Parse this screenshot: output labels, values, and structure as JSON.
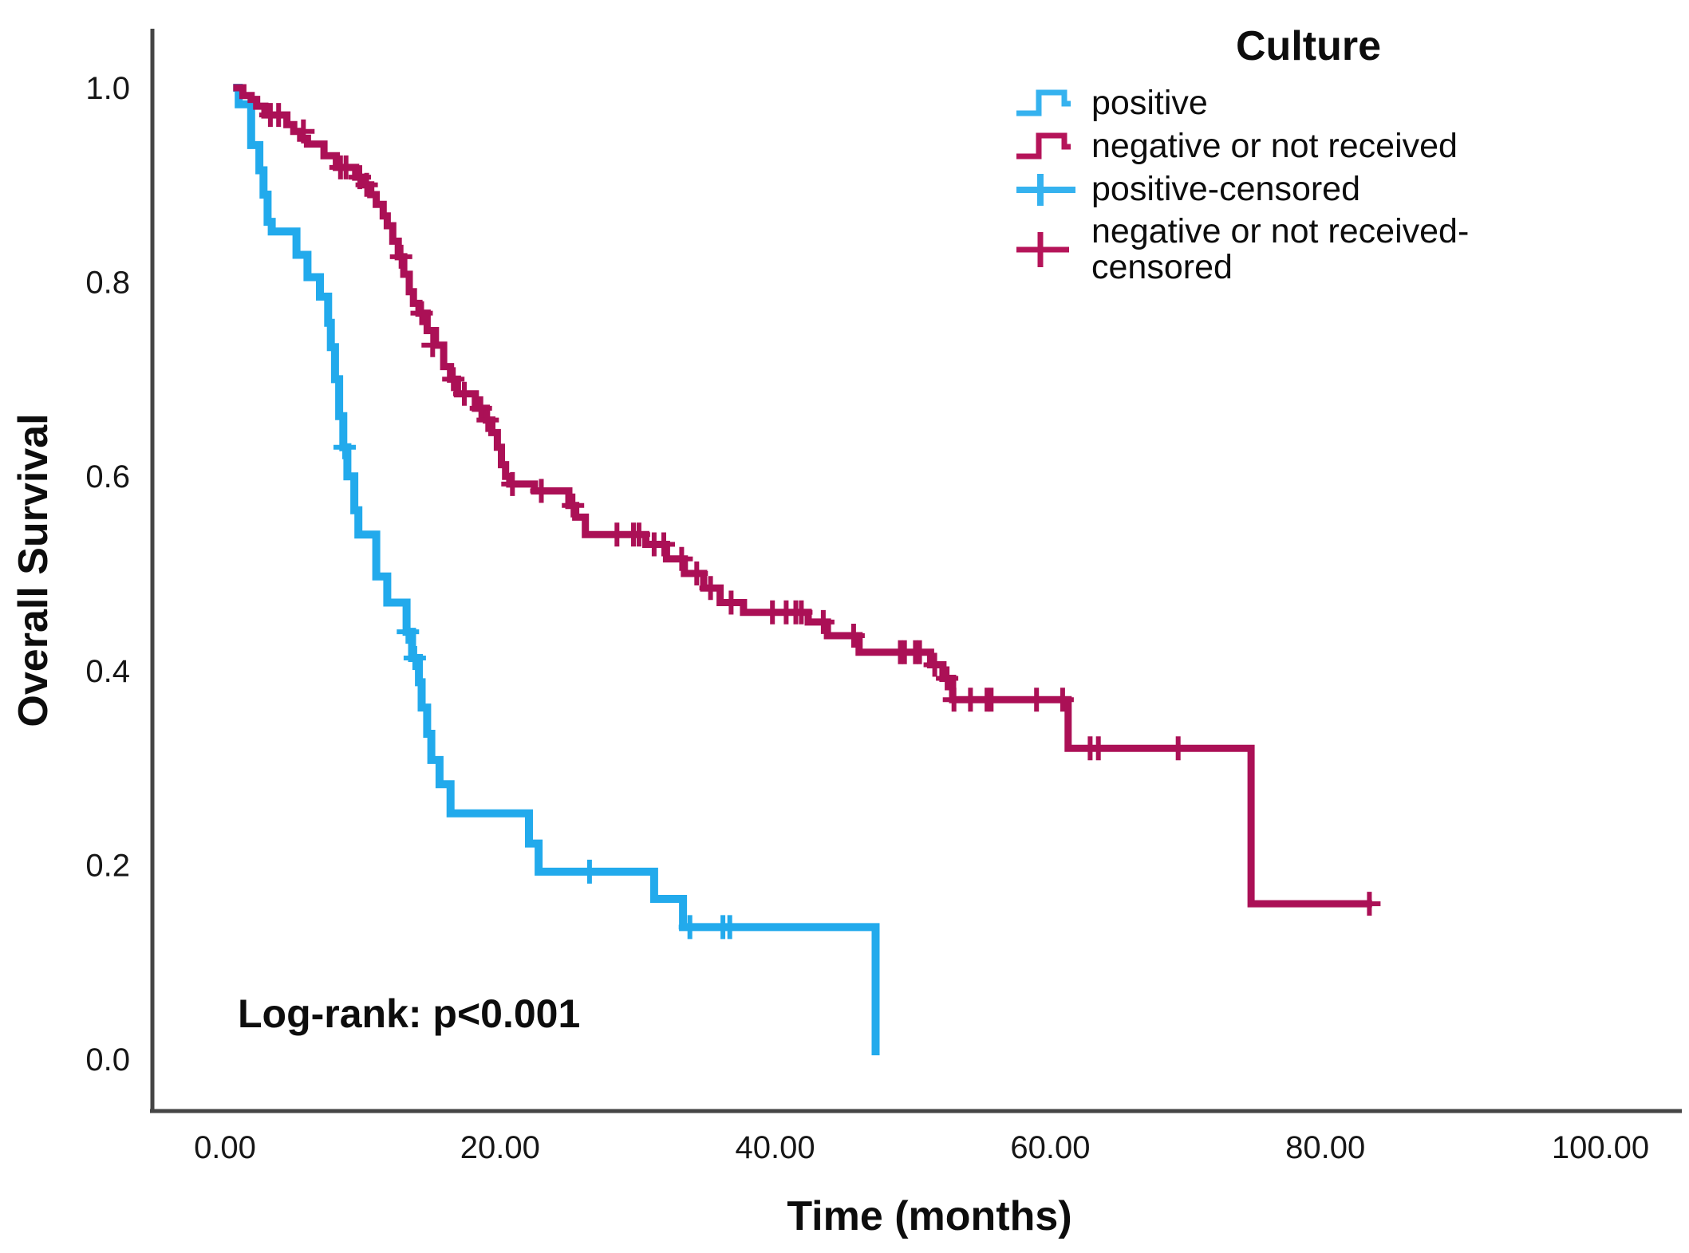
{
  "annotation": {
    "logrank": "Log-rank: p<0.001"
  },
  "legend": {
    "title": "Culture",
    "entries": [
      {
        "label": "positive",
        "symbol": "step-line",
        "color": "#35B2EF"
      },
      {
        "label": "negative or not received",
        "symbol": "step-line",
        "color": "#B51459"
      },
      {
        "label": "positive-censored",
        "symbol": "plus",
        "color": "#35B2EF"
      },
      {
        "label": "negative or not received-censored",
        "symbol": "plus",
        "color": "#B51459"
      }
    ]
  },
  "chart_data": {
    "type": "line",
    "subtype": "kaplan-meier-survival",
    "title": "",
    "xlabel": "Time (months)",
    "ylabel": "Overall Survival",
    "xlim": [
      0,
      100
    ],
    "ylim": [
      0.0,
      1.0
    ],
    "grid": false,
    "legend_position": "top-right",
    "x_ticks": {
      "values": [
        0,
        20,
        40,
        60,
        80,
        100
      ],
      "labels": [
        "0.00",
        "20.00",
        "40.00",
        "60.00",
        "80.00",
        "100.00"
      ]
    },
    "y_ticks": {
      "values": [
        1.0,
        0.8,
        0.6,
        0.4,
        0.2,
        0.0
      ],
      "labels": [
        "1.0",
        "0.8",
        "0.6",
        "0.4",
        "0.2",
        "0.0"
      ]
    },
    "axis_color": "#454545",
    "series": [
      {
        "name": "positive",
        "color": "#22AAEC",
        "line_width": 10,
        "steps": [
          [
            0.6,
            1.0
          ],
          [
            1.0,
            0.983
          ],
          [
            1.9,
            0.941
          ],
          [
            2.5,
            0.915
          ],
          [
            2.8,
            0.89
          ],
          [
            3.1,
            0.862
          ],
          [
            3.4,
            0.852
          ],
          [
            5.2,
            0.828
          ],
          [
            6.0,
            0.805
          ],
          [
            6.9,
            0.785
          ],
          [
            7.5,
            0.758
          ],
          [
            7.7,
            0.733
          ],
          [
            8.0,
            0.7
          ],
          [
            8.3,
            0.662
          ],
          [
            8.6,
            0.63
          ],
          [
            8.9,
            0.6
          ],
          [
            9.4,
            0.565
          ],
          [
            9.7,
            0.54
          ],
          [
            11.0,
            0.497
          ],
          [
            11.8,
            0.47
          ],
          [
            13.2,
            0.44
          ],
          [
            13.6,
            0.413
          ],
          [
            14.1,
            0.388
          ],
          [
            14.3,
            0.362
          ],
          [
            14.7,
            0.335
          ],
          [
            15.0,
            0.308
          ],
          [
            15.6,
            0.283
          ],
          [
            16.4,
            0.253
          ],
          [
            22.1,
            0.222
          ],
          [
            22.8,
            0.193
          ],
          [
            31.2,
            0.165
          ],
          [
            33.3,
            0.136
          ],
          [
            47.3,
            0.004
          ]
        ],
        "end_time": 47.3,
        "censors": [
          [
            8.7,
            0.63
          ],
          [
            13.3,
            0.44
          ],
          [
            13.8,
            0.413
          ],
          [
            26.5,
            0.193
          ],
          [
            33.8,
            0.136
          ],
          [
            36.2,
            0.136
          ],
          [
            36.7,
            0.136
          ]
        ]
      },
      {
        "name": "negative or not received",
        "color": "#AB1056",
        "line_width": 9,
        "steps": [
          [
            0.6,
            1.0
          ],
          [
            1.3,
            0.992
          ],
          [
            1.9,
            0.988
          ],
          [
            2.3,
            0.981
          ],
          [
            2.9,
            0.972
          ],
          [
            4.5,
            0.962
          ],
          [
            5.0,
            0.955
          ],
          [
            5.5,
            0.948
          ],
          [
            6.0,
            0.942
          ],
          [
            7.2,
            0.93
          ],
          [
            8.1,
            0.918
          ],
          [
            9.5,
            0.908
          ],
          [
            10.1,
            0.9
          ],
          [
            10.6,
            0.89
          ],
          [
            11.0,
            0.88
          ],
          [
            11.5,
            0.868
          ],
          [
            11.8,
            0.858
          ],
          [
            12.2,
            0.842
          ],
          [
            12.6,
            0.826
          ],
          [
            13.0,
            0.808
          ],
          [
            13.4,
            0.79
          ],
          [
            13.7,
            0.778
          ],
          [
            14.1,
            0.768
          ],
          [
            14.7,
            0.75
          ],
          [
            15.3,
            0.735
          ],
          [
            15.9,
            0.713
          ],
          [
            16.4,
            0.7
          ],
          [
            16.9,
            0.685
          ],
          [
            18.2,
            0.67
          ],
          [
            19.0,
            0.658
          ],
          [
            19.4,
            0.645
          ],
          [
            19.8,
            0.63
          ],
          [
            20.1,
            0.612
          ],
          [
            20.4,
            0.6
          ],
          [
            20.7,
            0.592
          ],
          [
            22.5,
            0.585
          ],
          [
            25.0,
            0.57
          ],
          [
            25.5,
            0.558
          ],
          [
            26.2,
            0.54
          ],
          [
            30.6,
            0.53
          ],
          [
            32.1,
            0.515
          ],
          [
            33.4,
            0.5
          ],
          [
            34.8,
            0.485
          ],
          [
            36.0,
            0.47
          ],
          [
            37.7,
            0.46
          ],
          [
            42.4,
            0.45
          ],
          [
            43.8,
            0.436
          ],
          [
            46.1,
            0.419
          ],
          [
            51.3,
            0.406
          ],
          [
            52.2,
            0.392
          ],
          [
            52.9,
            0.37
          ],
          [
            61.3,
            0.32
          ],
          [
            74.6,
            0.16
          ]
        ],
        "end_time": 83.4,
        "censors": [
          [
            3.3,
            0.972
          ],
          [
            3.9,
            0.972
          ],
          [
            5.7,
            0.955
          ],
          [
            8.4,
            0.918
          ],
          [
            8.8,
            0.918
          ],
          [
            9.8,
            0.908
          ],
          [
            10.3,
            0.9
          ],
          [
            12.8,
            0.826
          ],
          [
            14.3,
            0.768
          ],
          [
            15.1,
            0.735
          ],
          [
            16.6,
            0.7
          ],
          [
            17.4,
            0.685
          ],
          [
            18.6,
            0.67
          ],
          [
            19.1,
            0.658
          ],
          [
            20.9,
            0.592
          ],
          [
            23.0,
            0.585
          ],
          [
            25.3,
            0.57
          ],
          [
            28.5,
            0.54
          ],
          [
            29.7,
            0.54
          ],
          [
            30.1,
            0.54
          ],
          [
            31.2,
            0.53
          ],
          [
            31.9,
            0.53
          ],
          [
            33.2,
            0.515
          ],
          [
            34.3,
            0.5
          ],
          [
            35.3,
            0.485
          ],
          [
            36.8,
            0.47
          ],
          [
            39.8,
            0.46
          ],
          [
            40.8,
            0.46
          ],
          [
            41.5,
            0.46
          ],
          [
            41.9,
            0.46
          ],
          [
            43.5,
            0.45
          ],
          [
            45.7,
            0.436
          ],
          [
            49.1,
            0.419
          ],
          [
            49.4,
            0.419
          ],
          [
            50.2,
            0.419
          ],
          [
            50.5,
            0.419
          ],
          [
            51.6,
            0.406
          ],
          [
            52.5,
            0.392
          ],
          [
            53.0,
            0.37
          ],
          [
            54.2,
            0.37
          ],
          [
            55.4,
            0.37
          ],
          [
            55.7,
            0.37
          ],
          [
            59.0,
            0.37
          ],
          [
            60.9,
            0.37
          ],
          [
            62.9,
            0.32
          ],
          [
            63.5,
            0.32
          ],
          [
            69.3,
            0.32
          ],
          [
            83.2,
            0.16
          ]
        ]
      }
    ]
  }
}
